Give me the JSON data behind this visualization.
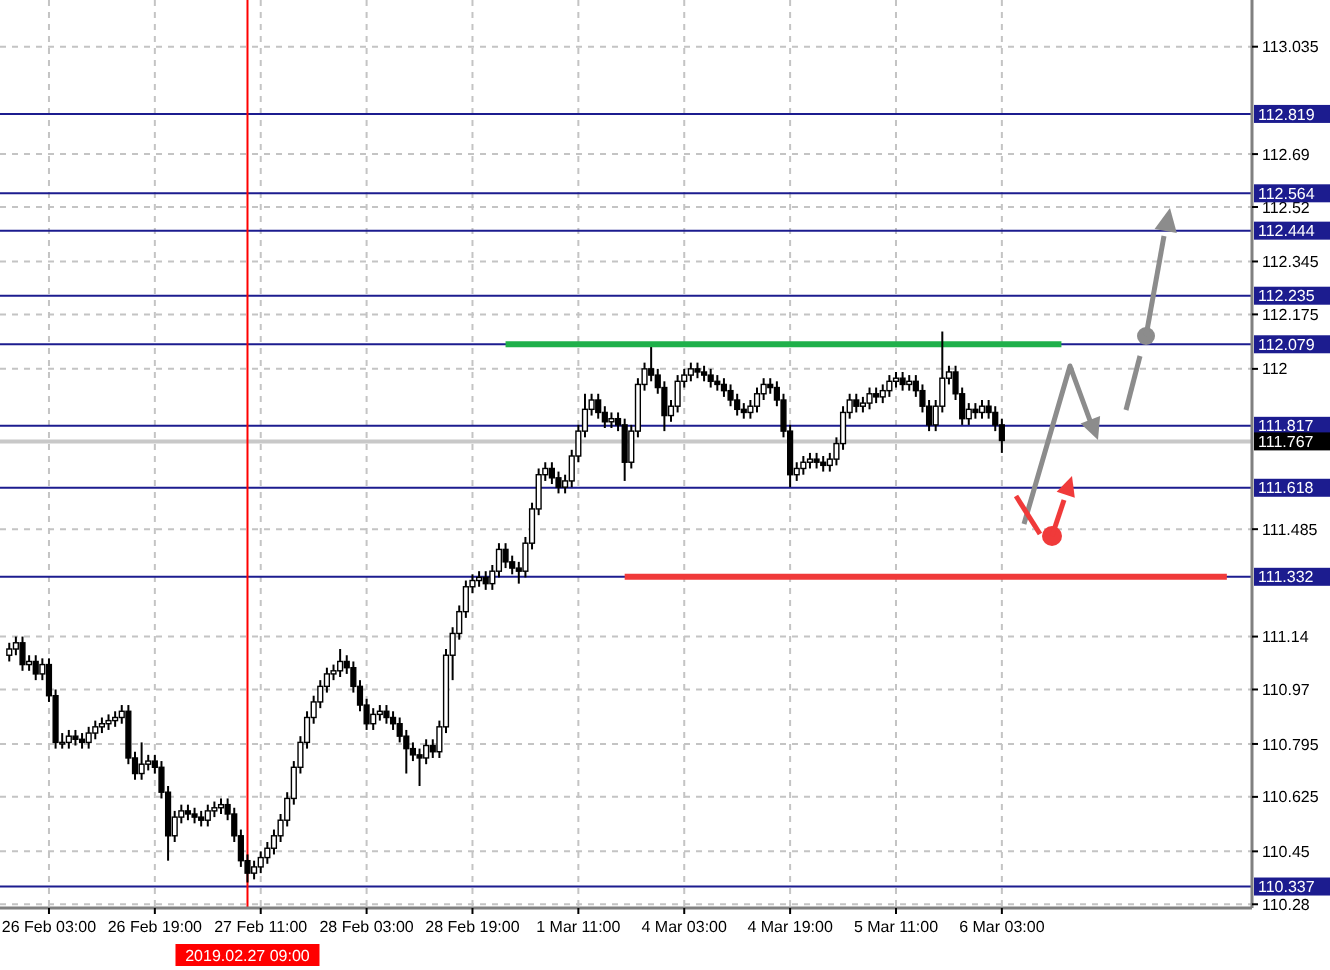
{
  "chart_data": {
    "type": "candlestick",
    "categories": [
      null,
      null,
      null,
      null,
      null,
      null,
      "26 Feb 03:00",
      null,
      null,
      null,
      null,
      null,
      null,
      null,
      null,
      null,
      null,
      null,
      null,
      null,
      null,
      null,
      "26 Feb 19:00",
      null,
      null,
      null,
      null,
      null,
      null,
      null,
      null,
      null,
      null,
      null,
      null,
      null,
      "2019.02.27 09:00",
      null,
      "27 Feb 11:00",
      null,
      null,
      null,
      null,
      null,
      null,
      null,
      null,
      null,
      null,
      null,
      null,
      null,
      null,
      null,
      "28 Feb 03:00",
      null,
      null,
      null,
      null,
      null,
      null,
      null,
      null,
      null,
      null,
      null,
      null,
      null,
      null,
      null,
      "28 Feb 19:00",
      null,
      null,
      null,
      null,
      null,
      null,
      null,
      null,
      null,
      null,
      null,
      null,
      null,
      null,
      null,
      "1 Mar 11:00",
      null,
      null,
      null,
      null,
      null,
      null,
      null,
      null,
      null,
      null,
      null,
      null,
      null,
      null,
      null,
      "4 Mar 03:00",
      null,
      null,
      null,
      null,
      null,
      null,
      null,
      null,
      null,
      null,
      null,
      null,
      null,
      null,
      null,
      "4 Mar 19:00",
      null,
      null,
      null,
      null,
      null,
      null,
      null,
      null,
      null,
      null,
      null,
      null,
      null,
      null,
      null,
      "5 Mar 11:00",
      null,
      null,
      null,
      null,
      null,
      null,
      null,
      null,
      null,
      null,
      null,
      null,
      null,
      null,
      null,
      "6 Mar 03:00",
      null,
      null,
      null,
      null,
      null,
      null,
      null,
      null,
      null,
      null,
      null,
      null,
      null,
      null,
      null,
      null,
      null,
      null,
      null,
      null,
      null,
      null,
      null,
      null,
      null,
      null,
      null,
      null,
      null,
      null,
      null,
      null,
      null,
      null
    ],
    "ohlc": [
      [
        111.08,
        111.12,
        111.06,
        111.1
      ],
      [
        111.1,
        111.14,
        111.08,
        111.12
      ],
      [
        111.12,
        111.14,
        111.03,
        111.05
      ],
      [
        111.05,
        111.08,
        111.03,
        111.06
      ],
      [
        111.06,
        111.08,
        111.0,
        111.02
      ],
      [
        111.02,
        111.07,
        111.0,
        111.05
      ],
      [
        111.05,
        111.07,
        110.93,
        110.95
      ],
      [
        110.95,
        110.97,
        110.78,
        110.8
      ],
      [
        110.8,
        110.83,
        110.78,
        110.8
      ],
      [
        110.8,
        110.84,
        110.78,
        110.82
      ],
      [
        110.82,
        110.84,
        110.79,
        110.81
      ],
      [
        110.81,
        110.83,
        110.78,
        110.8
      ],
      [
        110.8,
        110.85,
        110.78,
        110.83
      ],
      [
        110.83,
        110.87,
        110.81,
        110.85
      ],
      [
        110.85,
        110.88,
        110.83,
        110.86
      ],
      [
        110.86,
        110.89,
        110.84,
        110.87
      ],
      [
        110.87,
        110.9,
        110.85,
        110.88
      ],
      [
        110.88,
        110.92,
        110.86,
        110.9
      ],
      [
        110.9,
        110.92,
        110.73,
        110.75
      ],
      [
        110.75,
        110.77,
        110.68,
        110.7
      ],
      [
        110.7,
        110.8,
        110.68,
        110.73
      ],
      [
        110.73,
        110.76,
        110.71,
        110.74
      ],
      [
        110.74,
        110.76,
        110.7,
        110.72
      ],
      [
        110.72,
        110.74,
        110.62,
        110.64
      ],
      [
        110.64,
        110.66,
        110.42,
        110.5
      ],
      [
        110.5,
        110.58,
        110.48,
        110.56
      ],
      [
        110.56,
        110.6,
        110.54,
        110.58
      ],
      [
        110.58,
        110.6,
        110.55,
        110.57
      ],
      [
        110.57,
        110.59,
        110.54,
        110.56
      ],
      [
        110.56,
        110.58,
        110.53,
        110.55
      ],
      [
        110.55,
        110.6,
        110.53,
        110.58
      ],
      [
        110.58,
        110.61,
        110.56,
        110.59
      ],
      [
        110.59,
        110.62,
        110.57,
        110.6
      ],
      [
        110.6,
        110.62,
        110.55,
        110.57
      ],
      [
        110.57,
        110.59,
        110.48,
        110.5
      ],
      [
        110.5,
        110.52,
        110.4,
        110.42
      ],
      [
        110.42,
        110.44,
        110.35,
        110.38
      ],
      [
        110.38,
        110.42,
        110.36,
        110.4
      ],
      [
        110.4,
        110.45,
        110.38,
        110.43
      ],
      [
        110.43,
        110.48,
        110.41,
        110.46
      ],
      [
        110.46,
        110.52,
        110.44,
        110.5
      ],
      [
        110.5,
        110.57,
        110.48,
        110.55
      ],
      [
        110.55,
        110.64,
        110.53,
        110.62
      ],
      [
        110.62,
        110.74,
        110.6,
        110.72
      ],
      [
        110.72,
        110.82,
        110.7,
        110.8
      ],
      [
        110.8,
        110.9,
        110.78,
        110.88
      ],
      [
        110.88,
        110.95,
        110.86,
        110.93
      ],
      [
        110.93,
        111.0,
        110.91,
        110.98
      ],
      [
        110.98,
        111.04,
        110.96,
        111.02
      ],
      [
        111.02,
        111.05,
        111.0,
        111.03
      ],
      [
        111.03,
        111.1,
        111.01,
        111.06
      ],
      [
        111.06,
        111.08,
        111.02,
        111.04
      ],
      [
        111.04,
        111.06,
        110.96,
        110.98
      ],
      [
        110.98,
        111.0,
        110.9,
        110.92
      ],
      [
        110.92,
        110.94,
        110.84,
        110.86
      ],
      [
        110.86,
        110.91,
        110.84,
        110.89
      ],
      [
        110.89,
        110.92,
        110.87,
        110.9
      ],
      [
        110.9,
        110.92,
        110.86,
        110.88
      ],
      [
        110.88,
        110.9,
        110.84,
        110.86
      ],
      [
        110.86,
        110.88,
        110.8,
        110.82
      ],
      [
        110.82,
        110.84,
        110.7,
        110.78
      ],
      [
        110.78,
        110.8,
        110.74,
        110.76
      ],
      [
        110.76,
        110.78,
        110.66,
        110.75
      ],
      [
        110.75,
        110.81,
        110.73,
        110.79
      ],
      [
        110.79,
        110.81,
        110.75,
        110.77
      ],
      [
        110.77,
        110.87,
        110.75,
        110.85
      ],
      [
        110.85,
        111.1,
        110.83,
        111.08
      ],
      [
        111.08,
        111.17,
        111.0,
        111.15
      ],
      [
        111.15,
        111.24,
        111.13,
        111.22
      ],
      [
        111.22,
        111.32,
        111.2,
        111.3
      ],
      [
        111.3,
        111.34,
        111.28,
        111.32
      ],
      [
        111.32,
        111.35,
        111.3,
        111.33
      ],
      [
        111.33,
        111.35,
        111.29,
        111.31
      ],
      [
        111.31,
        111.37,
        111.29,
        111.35
      ],
      [
        111.35,
        111.44,
        111.33,
        111.42
      ],
      [
        111.42,
        111.44,
        111.36,
        111.38
      ],
      [
        111.38,
        111.4,
        111.34,
        111.36
      ],
      [
        111.36,
        111.38,
        111.31,
        111.35
      ],
      [
        111.35,
        111.46,
        111.33,
        111.44
      ],
      [
        111.44,
        111.57,
        111.42,
        111.55
      ],
      [
        111.55,
        111.68,
        111.53,
        111.66
      ],
      [
        111.66,
        111.7,
        111.64,
        111.68
      ],
      [
        111.68,
        111.7,
        111.63,
        111.65
      ],
      [
        111.65,
        111.67,
        111.6,
        111.62
      ],
      [
        111.62,
        111.66,
        111.6,
        111.64
      ],
      [
        111.64,
        111.74,
        111.62,
        111.72
      ],
      [
        111.72,
        111.82,
        111.7,
        111.8
      ],
      [
        111.8,
        111.92,
        111.78,
        111.87
      ],
      [
        111.87,
        111.92,
        111.85,
        111.9
      ],
      [
        111.9,
        111.92,
        111.84,
        111.86
      ],
      [
        111.86,
        111.88,
        111.81,
        111.83
      ],
      [
        111.83,
        111.86,
        111.81,
        111.84
      ],
      [
        111.84,
        111.86,
        111.8,
        111.82
      ],
      [
        111.82,
        111.84,
        111.64,
        111.7
      ],
      [
        111.7,
        111.82,
        111.68,
        111.8
      ],
      [
        111.8,
        111.97,
        111.78,
        111.95
      ],
      [
        111.95,
        112.02,
        111.93,
        112.0
      ],
      [
        112.0,
        112.07,
        111.96,
        111.98
      ],
      [
        111.98,
        112.0,
        111.92,
        111.94
      ],
      [
        111.94,
        111.96,
        111.8,
        111.85
      ],
      [
        111.85,
        111.9,
        111.83,
        111.88
      ],
      [
        111.88,
        111.98,
        111.86,
        111.96
      ],
      [
        111.96,
        112.0,
        111.94,
        111.98
      ],
      [
        111.98,
        112.02,
        111.96,
        112.0
      ],
      [
        112.0,
        112.02,
        111.97,
        111.99
      ],
      [
        111.99,
        112.01,
        111.96,
        111.98
      ],
      [
        111.98,
        112.0,
        111.94,
        111.96
      ],
      [
        111.96,
        111.98,
        111.93,
        111.95
      ],
      [
        111.95,
        111.97,
        111.91,
        111.93
      ],
      [
        111.93,
        111.95,
        111.88,
        111.9
      ],
      [
        111.9,
        111.92,
        111.85,
        111.87
      ],
      [
        111.87,
        111.89,
        111.84,
        111.86
      ],
      [
        111.86,
        111.9,
        111.84,
        111.88
      ],
      [
        111.88,
        111.94,
        111.86,
        111.92
      ],
      [
        111.92,
        111.97,
        111.9,
        111.95
      ],
      [
        111.95,
        111.97,
        111.92,
        111.94
      ],
      [
        111.94,
        111.96,
        111.88,
        111.9
      ],
      [
        111.9,
        111.92,
        111.78,
        111.8
      ],
      [
        111.8,
        111.82,
        111.62,
        111.66
      ],
      [
        111.66,
        111.7,
        111.64,
        111.68
      ],
      [
        111.68,
        111.72,
        111.66,
        111.7
      ],
      [
        111.7,
        111.73,
        111.68,
        111.71
      ],
      [
        111.71,
        111.73,
        111.68,
        111.7
      ],
      [
        111.7,
        111.72,
        111.67,
        111.69
      ],
      [
        111.69,
        111.73,
        111.67,
        111.71
      ],
      [
        111.71,
        111.78,
        111.69,
        111.76
      ],
      [
        111.76,
        111.88,
        111.74,
        111.86
      ],
      [
        111.86,
        111.92,
        111.84,
        111.9
      ],
      [
        111.9,
        111.92,
        111.86,
        111.88
      ],
      [
        111.88,
        111.91,
        111.86,
        111.89
      ],
      [
        111.89,
        111.94,
        111.87,
        111.92
      ],
      [
        111.92,
        111.94,
        111.89,
        111.91
      ],
      [
        111.91,
        111.95,
        111.89,
        111.93
      ],
      [
        111.93,
        111.98,
        111.91,
        111.96
      ],
      [
        111.96,
        111.99,
        111.94,
        111.97
      ],
      [
        111.97,
        111.99,
        111.93,
        111.95
      ],
      [
        111.95,
        111.98,
        111.93,
        111.96
      ],
      [
        111.96,
        111.98,
        111.91,
        111.93
      ],
      [
        111.93,
        111.95,
        111.86,
        111.88
      ],
      [
        111.88,
        111.9,
        111.8,
        111.82
      ],
      [
        111.82,
        111.9,
        111.8,
        111.88
      ],
      [
        111.88,
        112.12,
        111.86,
        111.97
      ],
      [
        111.97,
        112.01,
        111.95,
        111.99
      ],
      [
        111.99,
        112.01,
        111.9,
        111.92
      ],
      [
        111.92,
        111.94,
        111.82,
        111.84
      ],
      [
        111.84,
        111.89,
        111.82,
        111.87
      ],
      [
        111.87,
        111.89,
        111.84,
        111.86
      ],
      [
        111.86,
        111.9,
        111.84,
        111.88
      ],
      [
        111.88,
        111.9,
        111.84,
        111.86
      ],
      [
        111.86,
        111.88,
        111.8,
        111.82
      ],
      [
        111.82,
        111.84,
        111.73,
        111.77
      ],
      null,
      null,
      null,
      null,
      null,
      null,
      null,
      null,
      null,
      null,
      null,
      null,
      null,
      null,
      null,
      null,
      null,
      null,
      null,
      null,
      null,
      null,
      null,
      null,
      null,
      null,
      null,
      null,
      null,
      null,
      null,
      null,
      null,
      null
    ],
    "series": [
      {
        "type": "line",
        "color": "#1fb04a",
        "values": [
          null,
          null,
          null,
          null,
          null,
          null,
          null,
          null,
          null,
          null,
          null,
          null,
          null,
          null,
          null,
          null,
          null,
          null,
          null,
          null,
          null,
          null,
          null,
          null,
          null,
          null,
          null,
          null,
          null,
          null,
          null,
          null,
          null,
          null,
          null,
          null,
          null,
          null,
          null,
          null,
          null,
          null,
          null,
          null,
          null,
          null,
          null,
          null,
          null,
          null,
          null,
          null,
          null,
          null,
          null,
          null,
          null,
          null,
          null,
          null,
          null,
          null,
          null,
          null,
          null,
          null,
          null,
          null,
          null,
          null,
          null,
          null,
          null,
          null,
          null,
          112.079,
          112.079,
          112.079,
          112.079,
          112.079,
          112.079,
          112.079,
          112.079,
          112.079,
          112.079,
          112.079,
          112.079,
          112.079,
          112.079,
          112.079,
          112.079,
          112.079,
          112.079,
          112.079,
          112.079,
          112.079,
          112.079,
          112.079,
          112.079,
          112.079,
          112.079,
          112.079,
          112.079,
          112.079,
          112.079,
          112.079,
          112.079,
          112.079,
          112.079,
          112.079,
          112.079,
          112.079,
          112.079,
          112.079,
          112.079,
          112.079,
          112.079,
          112.079,
          112.079,
          112.079,
          112.079,
          112.079,
          112.079,
          112.079,
          112.079,
          112.079,
          112.079,
          112.079,
          112.079,
          112.079,
          112.079,
          112.079,
          112.079,
          112.079,
          112.079,
          112.079,
          112.079,
          112.079,
          112.079,
          112.079,
          112.079,
          112.079,
          112.079,
          112.079,
          112.079,
          112.079,
          112.079,
          112.079,
          112.079,
          112.079,
          112.079,
          112.079,
          112.079,
          112.079,
          112.079,
          112.079,
          112.079,
          112.079,
          112.079,
          112.079,
          null,
          null,
          null,
          null,
          null,
          null,
          null,
          null,
          null,
          null,
          null,
          null,
          null,
          null,
          null,
          null,
          null,
          null,
          null,
          null,
          null,
          null,
          null,
          null,
          null
        ]
      },
      {
        "type": "line",
        "color": "#f03a3a",
        "values": [
          null,
          null,
          null,
          null,
          null,
          null,
          null,
          null,
          null,
          null,
          null,
          null,
          null,
          null,
          null,
          null,
          null,
          null,
          null,
          null,
          null,
          null,
          null,
          null,
          null,
          null,
          null,
          null,
          null,
          null,
          null,
          null,
          null,
          null,
          null,
          null,
          null,
          null,
          null,
          null,
          null,
          null,
          null,
          null,
          null,
          null,
          null,
          null,
          null,
          null,
          null,
          null,
          null,
          null,
          null,
          null,
          null,
          null,
          null,
          null,
          null,
          null,
          null,
          null,
          null,
          null,
          null,
          null,
          null,
          null,
          null,
          null,
          null,
          null,
          null,
          null,
          null,
          null,
          null,
          null,
          null,
          null,
          null,
          null,
          null,
          null,
          null,
          null,
          null,
          null,
          null,
          null,
          null,
          111.332,
          111.332,
          111.332,
          111.332,
          111.332,
          111.332,
          111.332,
          111.332,
          111.332,
          111.332,
          111.332,
          111.332,
          111.332,
          111.332,
          111.332,
          111.332,
          111.332,
          111.332,
          111.332,
          111.332,
          111.332,
          111.332,
          111.332,
          111.332,
          111.332,
          111.332,
          111.332,
          111.332,
          111.332,
          111.332,
          111.332,
          111.332,
          111.332,
          111.332,
          111.332,
          111.332,
          111.332,
          111.332,
          111.332,
          111.332,
          111.332,
          111.332,
          111.332,
          111.332,
          111.332,
          111.332,
          111.332,
          111.332,
          111.332,
          111.332,
          111.332,
          111.332,
          111.332,
          111.332,
          111.332,
          111.332,
          111.332,
          111.332,
          111.332,
          111.332,
          111.332,
          111.332,
          111.332,
          111.332,
          111.332,
          111.332,
          111.332,
          111.332,
          111.332,
          111.332,
          111.332,
          111.332,
          111.332,
          111.332,
          111.332,
          111.332,
          111.332,
          111.332,
          111.332,
          111.332,
          111.332,
          111.332,
          111.332,
          111.332,
          111.332,
          111.332,
          111.332,
          111.332,
          111.332,
          111.332,
          111.332,
          111.332
        ]
      }
    ],
    "ylim": [
      110.268,
      113.185
    ],
    "yticks": [
      113.035,
      112.69,
      112.52,
      112.345,
      112.175,
      112.0,
      111.485,
      111.14,
      110.97,
      110.795,
      110.625,
      110.45,
      110.28
    ],
    "ref_lines": [
      {
        "axis": "y",
        "value": 112.819,
        "label": "112.819",
        "color": "#1c1c8f"
      },
      {
        "axis": "y",
        "value": 112.564,
        "label": "112.564",
        "color": "#1c1c8f"
      },
      {
        "axis": "y",
        "value": 112.444,
        "label": "112.444",
        "color": "#1c1c8f"
      },
      {
        "axis": "y",
        "value": 112.235,
        "label": "112.235",
        "color": "#1c1c8f"
      },
      {
        "axis": "y",
        "value": 112.079,
        "label": "112.079",
        "color": "#1c1c8f"
      },
      {
        "axis": "y",
        "value": 111.817,
        "label": "111.817",
        "color": "#1c1c8f"
      },
      {
        "axis": "y",
        "value": 111.767,
        "label": "111.767",
        "color": "#c8c8c8"
      },
      {
        "axis": "y",
        "value": 111.618,
        "label": "111.618",
        "color": "#1c1c8f"
      },
      {
        "axis": "y",
        "value": 111.332,
        "label": "111.332",
        "color": "#1c1c8f"
      },
      {
        "axis": "y",
        "value": 110.337,
        "label": "110.337",
        "color": "#1c1c8f"
      },
      {
        "axis": "x",
        "value": "2019.02.27 09:00",
        "color": "#ff0000"
      }
    ],
    "grid": true
  }
}
